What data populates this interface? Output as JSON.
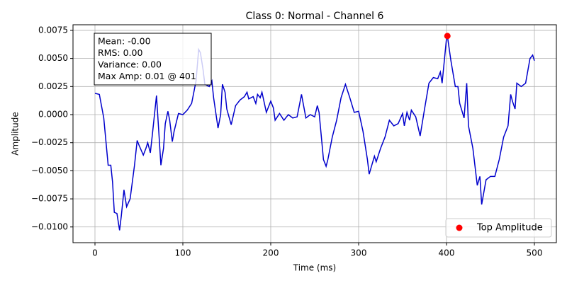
{
  "chart_data": {
    "type": "line",
    "title": "Class 0: Normal - Channel 6",
    "xlabel": "Time (ms)",
    "ylabel": "Amplitude",
    "annotations": [
      "Mean: -0.00",
      "RMS: 0.00",
      "Variance: 0.00",
      "Max Amp: 0.01 @ 401"
    ],
    "xlim": [
      -25,
      525
    ],
    "ylim": [
      -0.0114,
      0.008
    ],
    "xticks": [
      0,
      100,
      200,
      300,
      400,
      500
    ],
    "yticks": [
      {
        "value": -0.01,
        "label": "−0.0100"
      },
      {
        "value": -0.0075,
        "label": "−0.0075"
      },
      {
        "value": -0.005,
        "label": "−0.0050"
      },
      {
        "value": -0.0025,
        "label": "−0.0025"
      },
      {
        "value": 0,
        "label": "0.0000"
      },
      {
        "value": 0.0025,
        "label": "0.0025"
      },
      {
        "value": 0.005,
        "label": "0.0050"
      },
      {
        "value": 0.0075,
        "label": "0.0075"
      }
    ],
    "grid": true,
    "legend": "lower right",
    "series": [
      {
        "color": "#0000cc",
        "x": [
          0,
          5,
          10,
          15,
          18,
          20,
          22,
          25,
          28,
          30,
          33,
          36,
          40,
          45,
          48,
          50,
          55,
          58,
          60,
          63,
          65,
          70,
          73,
          75,
          78,
          80,
          83,
          85,
          88,
          90,
          95,
          100,
          105,
          110,
          115,
          118,
          120,
          123,
          125,
          130,
          133,
          135,
          140,
          143,
          145,
          148,
          150,
          155,
          160,
          165,
          170,
          173,
          175,
          180,
          183,
          185,
          188,
          190,
          195,
          200,
          203,
          205,
          210,
          215,
          220,
          225,
          230,
          235,
          240,
          245,
          250,
          253,
          255,
          260,
          263,
          265,
          270,
          275,
          280,
          285,
          290,
          295,
          300,
          305,
          310,
          312,
          315,
          318,
          320,
          325,
          330,
          335,
          340,
          345,
          350,
          352,
          355,
          358,
          360,
          365,
          370,
          375,
          380,
          385,
          390,
          393,
          395,
          400,
          401,
          405,
          410,
          413,
          415,
          420,
          423,
          425,
          430,
          435,
          438,
          440,
          445,
          450,
          455,
          460,
          465,
          470,
          473,
          475,
          478,
          480,
          485,
          490,
          495,
          498,
          500
        ],
        "values": [
          0.0019,
          0.0018,
          -0.0003,
          -0.0045,
          -0.0045,
          -0.006,
          -0.0087,
          -0.0088,
          -0.0103,
          -0.009,
          -0.0067,
          -0.0082,
          -0.0075,
          -0.0045,
          -0.0023,
          -0.0027,
          -0.0036,
          -0.003,
          -0.0025,
          -0.0034,
          -0.002,
          0.0017,
          -0.002,
          -0.0045,
          -0.003,
          -0.0008,
          0.0003,
          -0.0005,
          -0.0024,
          -0.0015,
          0.0001,
          0.0,
          0.0004,
          0.001,
          0.003,
          0.0058,
          0.0055,
          0.004,
          0.0027,
          0.0025,
          0.003,
          0.0015,
          -0.0012,
          0.0,
          0.0027,
          0.002,
          0.0005,
          -0.0009,
          0.0008,
          0.0013,
          0.0016,
          0.002,
          0.0014,
          0.0016,
          0.001,
          0.0018,
          0.0015,
          0.002,
          0.0002,
          0.0012,
          0.0006,
          -0.0005,
          0.0001,
          -0.0005,
          0.0,
          -0.0003,
          -0.0002,
          0.0018,
          -0.0003,
          0.0,
          -0.0002,
          0.0008,
          0.0002,
          -0.004,
          -0.0046,
          -0.004,
          -0.002,
          -0.0005,
          0.0015,
          0.0027,
          0.0015,
          0.0002,
          0.0003,
          -0.0015,
          -0.004,
          -0.0053,
          -0.0045,
          -0.0037,
          -0.0042,
          -0.003,
          -0.002,
          -0.0005,
          -0.001,
          -0.0008,
          0.0001,
          -0.001,
          0.0002,
          -0.0005,
          0.0004,
          -0.0002,
          -0.0019,
          0.0005,
          0.0028,
          0.0033,
          0.0032,
          0.0038,
          0.0028,
          0.0068,
          0.007,
          0.0048,
          0.0025,
          0.0025,
          0.001,
          -0.0003,
          0.0028,
          -0.001,
          -0.003,
          -0.0063,
          -0.0055,
          -0.008,
          -0.0058,
          -0.0055,
          -0.0055,
          -0.004,
          -0.002,
          -0.001,
          0.0018,
          0.0012,
          0.0005,
          0.0028,
          0.0025,
          0.0028,
          0.005,
          0.0053,
          0.0048
        ]
      },
      {
        "name": "Top Amplitude",
        "type": "scatter",
        "color": "#ff0000",
        "x": [
          401
        ],
        "values": [
          0.007
        ]
      }
    ]
  }
}
